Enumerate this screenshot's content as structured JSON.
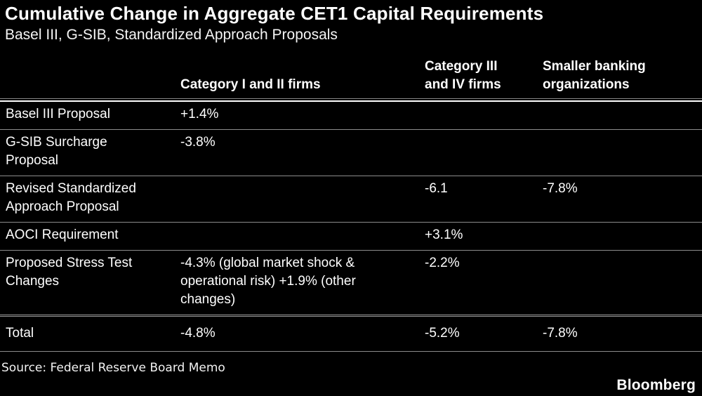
{
  "header": {
    "title": "Cumulative Change in Aggregate CET1 Capital Requirements",
    "subtitle": "Basel III, G-SIB, Standardized Approach Proposals"
  },
  "table": {
    "columns": {
      "cat12": {
        "lines": [
          "Category I and II firms"
        ]
      },
      "cat34": {
        "lines": [
          "Category III",
          "and IV firms"
        ]
      },
      "smaller": {
        "lines": [
          "Smaller banking",
          "organizations"
        ]
      }
    },
    "rows": [
      {
        "label": "Basel III Proposal",
        "cat12": "+1.4%",
        "cat34": "",
        "smaller": ""
      },
      {
        "label": "G-SIB Surcharge Proposal",
        "cat12": "-3.8%",
        "cat34": "",
        "smaller": ""
      },
      {
        "label": "Revised Standardized Approach Proposal",
        "cat12": "",
        "cat34": "-6.1",
        "smaller": "-7.8%"
      },
      {
        "label": "AOCI Requirement",
        "cat12": "",
        "cat34": "+3.1%",
        "smaller": ""
      },
      {
        "label": "Proposed Stress Test Changes",
        "cat12": "-4.3% (global market shock & operational risk) +1.9% (other changes)",
        "cat34": "-2.2%",
        "smaller": ""
      },
      {
        "label": "Total",
        "cat12": "-4.8%",
        "cat34": "-5.2%",
        "smaller": "-7.8%"
      }
    ]
  },
  "footer": {
    "source": "Source: Federal Reserve Board Memo",
    "logo": "Bloomberg"
  },
  "colors": {
    "background": "#000000",
    "text": "#ffffff",
    "separator": "#8c8c8c",
    "header_rule_white": "#ffffff"
  },
  "chart_data": {
    "type": "table",
    "title": "Cumulative Change in Aggregate CET1 Capital Requirements",
    "subtitle": "Basel III, G-SIB, Standardized Approach Proposals",
    "columns": [
      "",
      "Category I and II firms",
      "Category III and IV firms",
      "Smaller banking organizations"
    ],
    "rows": [
      [
        "Basel III Proposal",
        "+1.4%",
        "",
        ""
      ],
      [
        "G-SIB Surcharge Proposal",
        "-3.8%",
        "",
        ""
      ],
      [
        "Revised Standardized Approach Proposal",
        "",
        "-6.1",
        "-7.8%"
      ],
      [
        "AOCI Requirement",
        "",
        "+3.1%",
        ""
      ],
      [
        "Proposed Stress Test Changes",
        "-4.3% (global market shock & operational risk) +1.9% (other changes)",
        "-2.2%",
        ""
      ],
      [
        "Total",
        "-4.8%",
        "-5.2%",
        "-7.8%"
      ]
    ],
    "source": "Source: Federal Reserve Board Memo",
    "legend_position": "none",
    "grid": "horizontal-rules-only"
  }
}
